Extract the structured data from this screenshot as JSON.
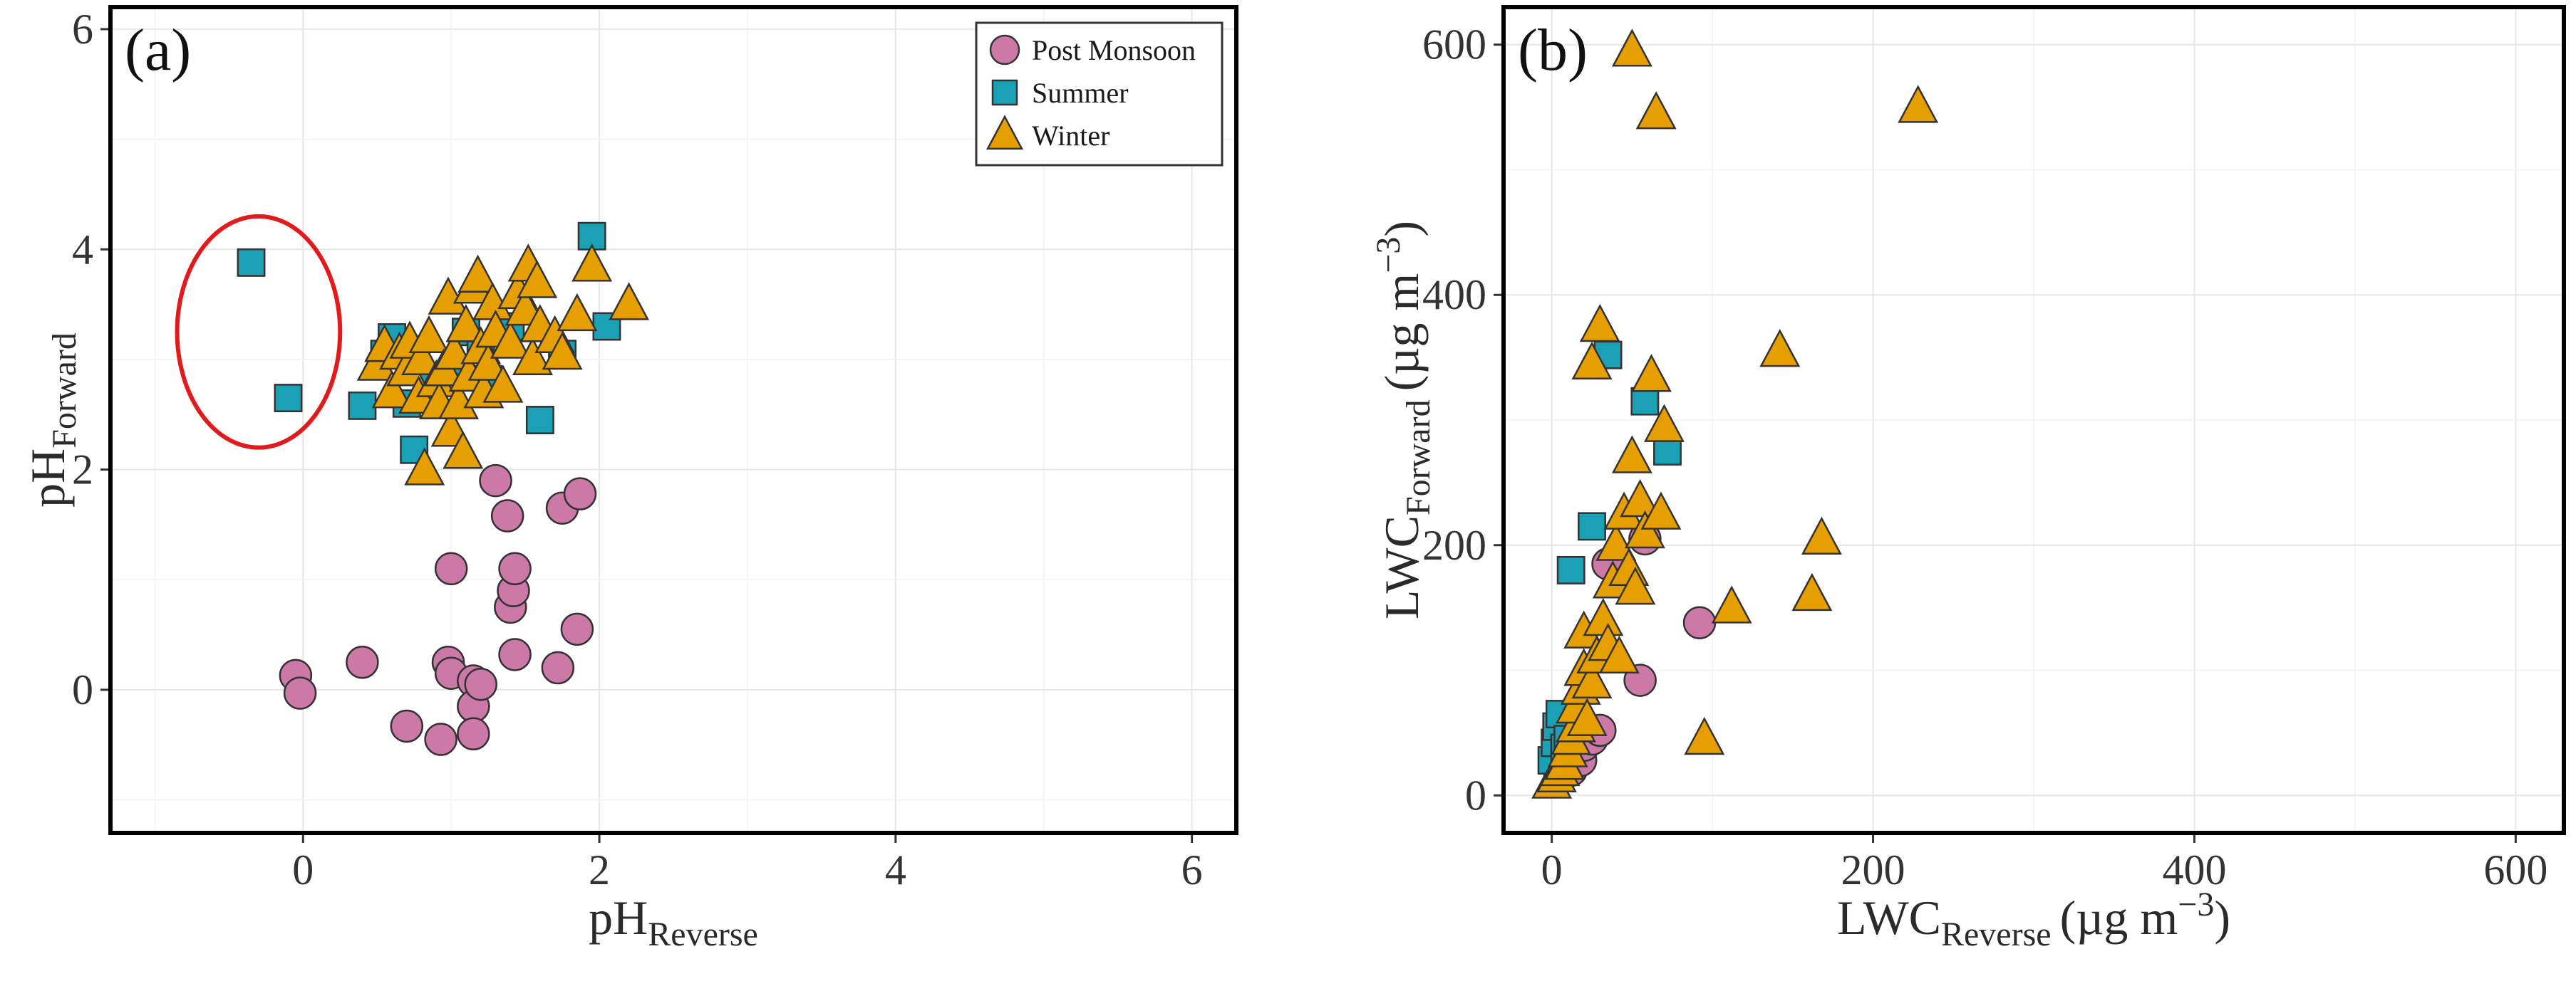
{
  "chart_data": [
    {
      "type": "scatter",
      "panel_label": "(a)",
      "title": "",
      "xlabel": "pH",
      "xlabel_sub": "Reverse",
      "ylabel": "pH",
      "ylabel_sub": "Forward",
      "xlim": [
        -1.3,
        6.3
      ],
      "ylim": [
        -1.3,
        6.2
      ],
      "xticks": [
        0,
        2,
        4,
        6
      ],
      "yticks": [
        0,
        2,
        4,
        6
      ],
      "xtick_labels": [
        "0",
        "2",
        "4",
        "6"
      ],
      "ytick_labels": [
        "0",
        "2",
        "4",
        "6"
      ],
      "grid": true,
      "legend_position": "top-right",
      "annotation": {
        "type": "ellipse",
        "color": "#e31a1c",
        "center": [
          -0.3,
          3.25
        ],
        "radii": [
          0.55,
          1.05
        ]
      },
      "series": [
        {
          "name": "Post Monsoon",
          "marker": "circle",
          "color": "#cc79a7",
          "points": [
            [
              -0.05,
              0.13
            ],
            [
              -0.02,
              -0.03
            ],
            [
              0.4,
              0.25
            ],
            [
              0.7,
              -0.33
            ],
            [
              0.93,
              -0.45
            ],
            [
              0.98,
              0.25
            ],
            [
              1.0,
              0.15
            ],
            [
              1.0,
              1.1
            ],
            [
              1.15,
              0.08
            ],
            [
              1.15,
              -0.15
            ],
            [
              1.15,
              -0.4
            ],
            [
              1.2,
              0.05
            ],
            [
              1.3,
              1.9
            ],
            [
              1.38,
              1.58
            ],
            [
              1.4,
              0.75
            ],
            [
              1.42,
              0.9
            ],
            [
              1.43,
              1.1
            ],
            [
              1.43,
              0.32
            ],
            [
              1.72,
              0.2
            ],
            [
              1.75,
              1.65
            ],
            [
              1.85,
              0.55
            ],
            [
              1.87,
              1.78
            ]
          ]
        },
        {
          "name": "Summer",
          "marker": "square",
          "color": "#1aa1b5",
          "points": [
            [
              -0.35,
              3.88
            ],
            [
              -0.1,
              2.65
            ],
            [
              0.4,
              2.58
            ],
            [
              0.55,
              3.05
            ],
            [
              0.6,
              3.2
            ],
            [
              0.7,
              2.6
            ],
            [
              0.75,
              2.18
            ],
            [
              0.85,
              2.75
            ],
            [
              1.05,
              2.9
            ],
            [
              1.1,
              3.25
            ],
            [
              1.2,
              3.1
            ],
            [
              1.25,
              2.82
            ],
            [
              1.4,
              3.3
            ],
            [
              1.6,
              2.45
            ],
            [
              1.75,
              3.05
            ],
            [
              1.95,
              4.12
            ],
            [
              2.05,
              3.3
            ]
          ]
        },
        {
          "name": "Winter",
          "marker": "triangle",
          "color": "#e69f00",
          "points": [
            [
              0.5,
              2.95
            ],
            [
              0.55,
              3.12
            ],
            [
              0.6,
              2.7
            ],
            [
              0.65,
              3.05
            ],
            [
              0.7,
              2.9
            ],
            [
              0.72,
              3.15
            ],
            [
              0.78,
              2.65
            ],
            [
              0.8,
              3.0
            ],
            [
              0.82,
              2.0
            ],
            [
              0.85,
              3.2
            ],
            [
              0.9,
              2.8
            ],
            [
              0.92,
              2.6
            ],
            [
              0.95,
              2.9
            ],
            [
              0.98,
              3.55
            ],
            [
              1.0,
              2.35
            ],
            [
              1.02,
              3.05
            ],
            [
              1.05,
              2.6
            ],
            [
              1.08,
              2.15
            ],
            [
              1.1,
              3.3
            ],
            [
              1.12,
              2.85
            ],
            [
              1.15,
              3.65
            ],
            [
              1.18,
              3.75
            ],
            [
              1.2,
              3.1
            ],
            [
              1.22,
              2.7
            ],
            [
              1.25,
              2.95
            ],
            [
              1.28,
              3.5
            ],
            [
              1.3,
              3.25
            ],
            [
              1.35,
              2.75
            ],
            [
              1.4,
              3.15
            ],
            [
              1.45,
              3.6
            ],
            [
              1.5,
              3.45
            ],
            [
              1.52,
              3.85
            ],
            [
              1.55,
              3.0
            ],
            [
              1.58,
              3.7
            ],
            [
              1.6,
              3.3
            ],
            [
              1.7,
              3.2
            ],
            [
              1.75,
              3.05
            ],
            [
              1.85,
              3.4
            ],
            [
              1.95,
              3.85
            ],
            [
              2.2,
              3.5
            ]
          ]
        }
      ]
    },
    {
      "type": "scatter",
      "panel_label": "(b)",
      "title": "",
      "xlabel": "LWC",
      "xlabel_sub": "Reverse",
      "xlabel_unit": "(µg m",
      "xlabel_exp": "−3",
      "ylabel": "LWC",
      "ylabel_sub": "Forward",
      "ylabel_unit": "(µg m",
      "ylabel_exp": "−3",
      "xlim": [
        -30,
        630
      ],
      "ylim": [
        -30,
        630
      ],
      "xticks": [
        0,
        200,
        400,
        600
      ],
      "yticks": [
        0,
        200,
        400,
        600
      ],
      "xtick_labels": [
        "0",
        "200",
        "400",
        "600"
      ],
      "ytick_labels": [
        "0",
        "200",
        "400",
        "600"
      ],
      "grid": true,
      "series": [
        {
          "name": "Post Monsoon",
          "marker": "circle",
          "color": "#cc79a7",
          "points": [
            [
              5,
              15
            ],
            [
              8,
              22
            ],
            [
              10,
              30
            ],
            [
              12,
              20
            ],
            [
              15,
              35
            ],
            [
              18,
              28
            ],
            [
              20,
              40
            ],
            [
              25,
              45
            ],
            [
              30,
              52
            ],
            [
              35,
              185
            ],
            [
              55,
              92
            ],
            [
              58,
              205
            ],
            [
              92,
              138
            ]
          ]
        },
        {
          "name": "Summer",
          "marker": "square",
          "color": "#1aa1b5",
          "points": [
            [
              0,
              28
            ],
            [
              2,
              42
            ],
            [
              3,
              55
            ],
            [
              5,
              65
            ],
            [
              8,
              38
            ],
            [
              10,
              45
            ],
            [
              12,
              180
            ],
            [
              25,
              215
            ],
            [
              35,
              352
            ],
            [
              58,
              315
            ],
            [
              72,
              275
            ]
          ]
        },
        {
          "name": "Winter",
          "marker": "triangle",
          "color": "#e69f00",
          "points": [
            [
              0,
              10
            ],
            [
              3,
              15
            ],
            [
              5,
              20
            ],
            [
              8,
              25
            ],
            [
              10,
              35
            ],
            [
              12,
              45
            ],
            [
              15,
              55
            ],
            [
              15,
              70
            ],
            [
              18,
              85
            ],
            [
              20,
              100
            ],
            [
              20,
              130
            ],
            [
              22,
              60
            ],
            [
              25,
              90
            ],
            [
              25,
              345
            ],
            [
              28,
              110
            ],
            [
              30,
              375
            ],
            [
              32,
              140
            ],
            [
              35,
              120
            ],
            [
              38,
              170
            ],
            [
              40,
              200
            ],
            [
              42,
              110
            ],
            [
              45,
              225
            ],
            [
              48,
              180
            ],
            [
              50,
              270
            ],
            [
              50,
              595
            ],
            [
              52,
              165
            ],
            [
              55,
              235
            ],
            [
              58,
              210
            ],
            [
              62,
              335
            ],
            [
              65,
              545
            ],
            [
              68,
              225
            ],
            [
              70,
              295
            ],
            [
              95,
              45
            ],
            [
              112,
              150
            ],
            [
              142,
              355
            ],
            [
              162,
              160
            ],
            [
              168,
              205
            ],
            [
              228,
              550
            ]
          ]
        }
      ]
    }
  ]
}
